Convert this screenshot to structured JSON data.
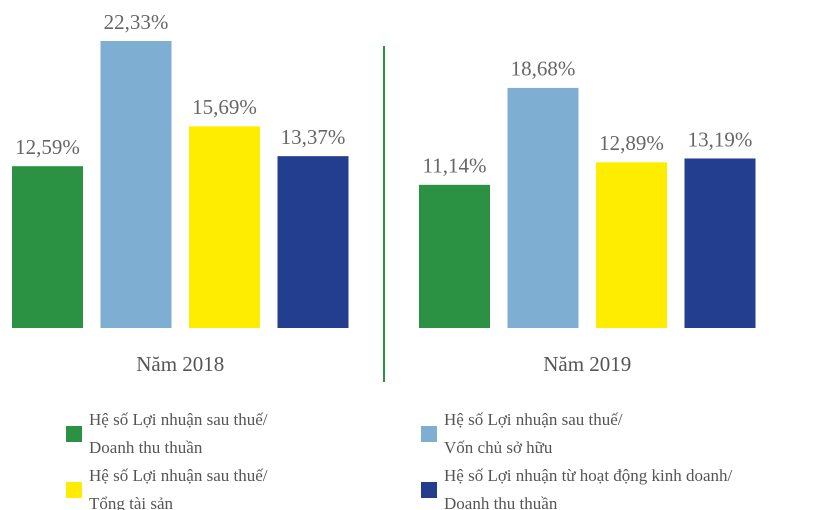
{
  "chart_data": {
    "type": "bar",
    "categories": [
      "Năm 2018",
      "Năm 2019"
    ],
    "series": [
      {
        "name": "Hệ số Lợi nhuận sau thuế/\nDoanh thu thuần",
        "color": "#2b9244",
        "values": [
          12.59,
          11.14
        ],
        "value_labels": [
          "12,59%",
          "11,14%"
        ]
      },
      {
        "name": "Hệ số Lợi nhuận sau thuế/\nVốn chủ sở hữu",
        "color": "#7eaed1",
        "values": [
          22.33,
          18.68
        ],
        "value_labels": [
          "22,33%",
          "18,68%"
        ]
      },
      {
        "name": "Hệ số Lợi nhuận sau thuế/\nTổng tài sản",
        "color": "#ffed00",
        "values": [
          15.69,
          12.89
        ],
        "value_labels": [
          "15,69%",
          "12,89%"
        ]
      },
      {
        "name": "Hệ số Lợi nhuận từ hoạt động kinh doanh/\nDoanh thu thuần",
        "color": "#233d8f",
        "values": [
          13.37,
          13.19
        ],
        "value_labels": [
          "13,37%",
          "13,19%"
        ]
      }
    ]
  }
}
